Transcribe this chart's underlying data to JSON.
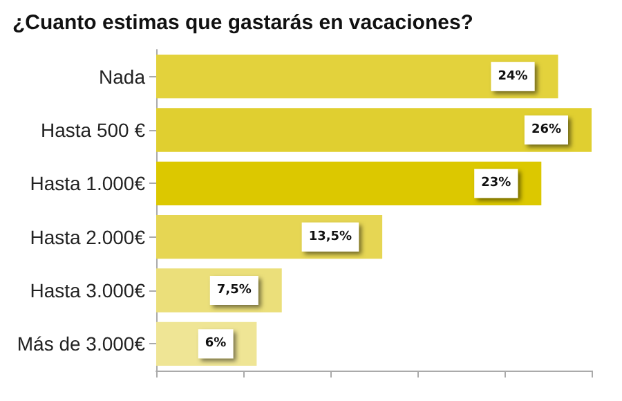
{
  "chart_data": {
    "type": "bar",
    "orientation": "horizontal",
    "title": "¿Cuanto estimas que gastarás en vacaciones?",
    "categories": [
      "Nada",
      "Hasta 500 €",
      "Hasta 1.000€",
      "Hasta 2.000€",
      "Hasta 3.000€",
      "Más de 3.000€"
    ],
    "values": [
      24,
      26,
      23,
      13.5,
      7.5,
      6
    ],
    "value_labels": [
      "24%",
      "26%",
      "23%",
      "13,5%",
      "7,5%",
      "6%"
    ],
    "colors": [
      "#e3d23c",
      "#e0cf30",
      "#dcc800",
      "#e6d653",
      "#ebdf7a",
      "#efe595"
    ],
    "xlim": [
      0,
      26
    ],
    "xticks": [
      {
        "value": 0,
        "label": null
      },
      {
        "value": 5.2,
        "label": null
      },
      {
        "value": 10.4,
        "label": null
      },
      {
        "value": 15.6,
        "label": null
      },
      {
        "value": 20.8,
        "label": null
      },
      {
        "value": 26,
        "label": null
      }
    ],
    "tick_labels": "y"
  }
}
